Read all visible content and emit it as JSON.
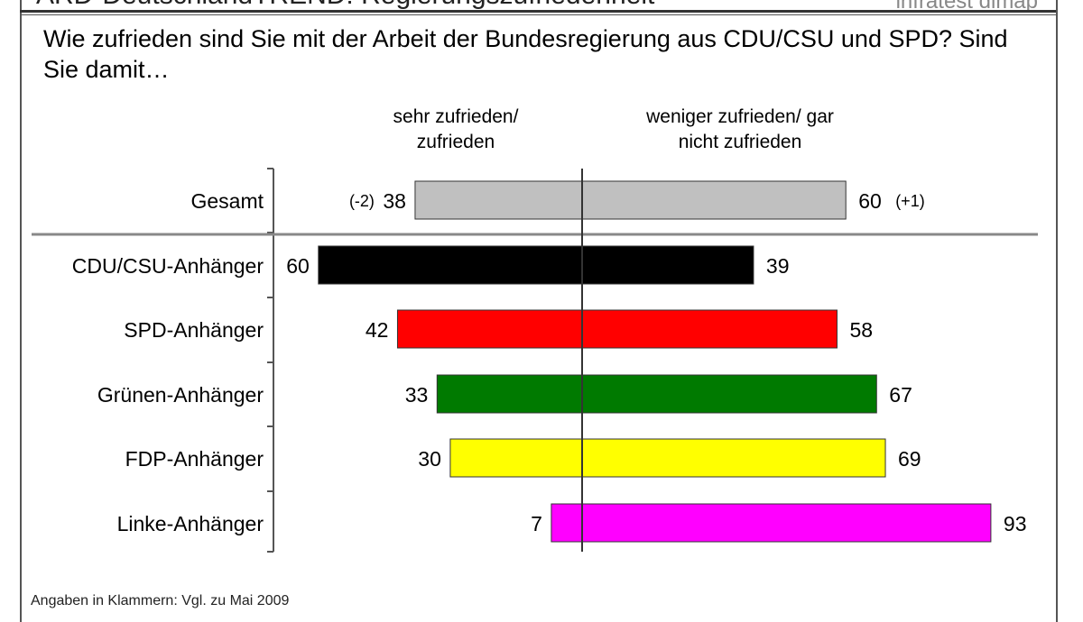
{
  "header": {
    "title": "ARD-DeutschlandTREND: Regierungszufriedenheit",
    "brand": "infratest dimap"
  },
  "question": "Wie zufrieden sind Sie mit der Arbeit der Bundesregierung aus CDU/CSU und SPD? Sind Sie damit…",
  "footnote": "Angaben in Klammern: Vgl. zu Mai 2009",
  "chart_data": {
    "type": "bar",
    "orientation": "horizontal-diverging",
    "column_headers": [
      "sehr zufrieden/ zufrieden",
      "weniger zufrieden/ gar nicht zufrieden"
    ],
    "categories": [
      "Gesamt",
      "CDU/CSU-Anhänger",
      "SPD-Anhänger",
      "Grünen-Anhänger",
      "FDP-Anhänger",
      "Linke-Anhänger"
    ],
    "series": [
      {
        "name": "sehr zufrieden/ zufrieden",
        "values": [
          38,
          60,
          42,
          33,
          30,
          7
        ]
      },
      {
        "name": "weniger zufrieden/ gar nicht zufrieden",
        "values": [
          60,
          39,
          58,
          67,
          69,
          93
        ]
      }
    ],
    "changes": {
      "left": [
        "(-2)",
        "",
        "",
        "",
        "",
        ""
      ],
      "right": [
        "(+1)",
        "",
        "",
        "",
        "",
        ""
      ]
    },
    "colors": [
      "#c0c0c0",
      "#000000",
      "#ff0000",
      "#007a00",
      "#ffff00",
      "#ff00ff"
    ]
  }
}
